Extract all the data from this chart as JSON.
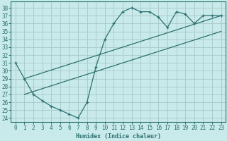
{
  "xlabel": "Humidex (Indice chaleur)",
  "background_color": "#c8eaea",
  "grid_color": "#a8c8c8",
  "line_color": "#2d7070",
  "xlim": [
    -0.5,
    23.5
  ],
  "ylim": [
    23.5,
    38.8
  ],
  "yticks": [
    24,
    25,
    26,
    27,
    28,
    29,
    30,
    31,
    32,
    33,
    34,
    35,
    36,
    37,
    38
  ],
  "xticks": [
    0,
    1,
    2,
    3,
    4,
    5,
    6,
    7,
    8,
    9,
    10,
    11,
    12,
    13,
    14,
    15,
    16,
    17,
    18,
    19,
    20,
    21,
    22,
    23
  ],
  "line1_x": [
    0,
    1,
    2,
    3,
    4,
    5,
    6,
    7,
    8,
    9,
    10,
    11,
    12,
    13,
    14,
    15,
    16,
    17,
    18,
    19,
    20,
    21,
    22,
    23
  ],
  "line1_y": [
    31.0,
    29.0,
    27.0,
    26.2,
    25.5,
    25.0,
    24.5,
    24.0,
    26.0,
    30.5,
    34.0,
    36.0,
    37.5,
    38.0,
    37.5,
    37.5,
    36.8,
    35.5,
    37.5,
    37.2,
    36.0,
    37.0,
    37.0,
    37.0
  ],
  "line2_x": [
    1,
    23
  ],
  "line2_y": [
    29.0,
    37.0
  ],
  "line3_x": [
    1,
    23
  ],
  "line3_y": [
    27.0,
    35.0
  ]
}
